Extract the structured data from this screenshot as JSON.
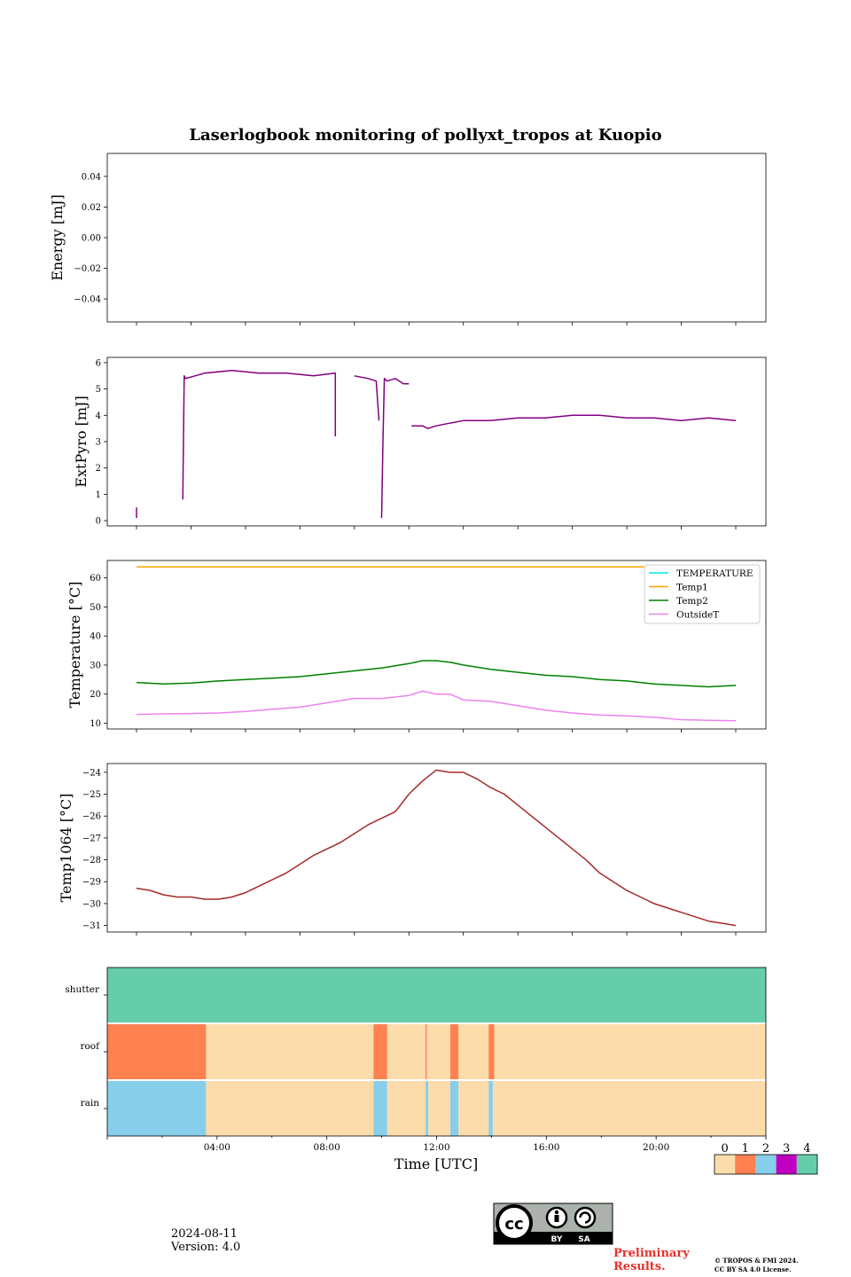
{
  "title": "Laserlogbook monitoring of pollyxt_tropos at Kuopio",
  "xlabel": "Time [UTC]",
  "xticks": [
    "04:00",
    "08:00",
    "12:00",
    "16:00",
    "20:00"
  ],
  "date": "2024-08-11",
  "version": "Version: 4.0",
  "preliminary": [
    "Preliminary",
    "Results."
  ],
  "copyright": [
    "© TROPOS & FMI 2024.",
    "CC BY SA 4.0 License."
  ],
  "license_badge": {
    "cc": "cc",
    "by": "BY",
    "sa": "SA"
  },
  "colors": {
    "ext_pyro": "#800080",
    "temperature": "#00e5ee",
    "temp1": "#ffa500",
    "temp2": "#008000",
    "outside_t": "#ee82ee",
    "temp1064": "#a52a2a",
    "state_0": "#fcdcab",
    "state_1": "#ff8050",
    "state_2": "#87ceeb",
    "state_3": "#c000c0",
    "state_4": "#66cdaa"
  },
  "chart_data": [
    {
      "type": "line",
      "ylabel": "Energy [mJ]",
      "ylim": [
        -0.055,
        0.055
      ],
      "yticks": [
        -0.04,
        -0.02,
        0.0,
        0.02,
        0.04
      ],
      "ytick_labels": [
        "−0.04",
        "−0.02",
        "0.00",
        "0.02",
        "0.04"
      ],
      "series": []
    },
    {
      "type": "line",
      "ylabel": "ExtPyro [mJ]",
      "ylim": [
        -0.2,
        6.2
      ],
      "yticks": [
        0,
        1,
        2,
        3,
        4,
        5,
        6
      ],
      "ytick_labels": [
        "0",
        "1",
        "2",
        "3",
        "4",
        "5",
        "6"
      ],
      "x_hours": [
        1.0,
        1.0,
        2.7,
        2.7,
        2.75,
        2.8,
        3.5,
        4.5,
        5.5,
        6.5,
        7.5,
        8.3,
        8.3,
        8.4,
        8.5,
        8.5,
        9.0,
        9.5,
        9.8,
        9.9,
        9.95,
        10.0,
        10.05,
        10.1,
        10.2,
        10.5,
        10.8,
        11.0,
        11.1,
        11.1,
        11.5,
        11.7,
        12.0,
        12.5,
        13.0,
        14.0,
        15.0,
        16.0,
        17.0,
        18.0,
        19.0,
        20.0,
        21.0,
        22.0,
        23.0
      ],
      "series": [
        {
          "name": "ExtPyro",
          "values": [
            0.5,
            0.1,
            null,
            0.8,
            5.5,
            5.4,
            5.6,
            5.7,
            5.6,
            5.6,
            5.5,
            5.6,
            3.2,
            null,
            0.8,
            null,
            5.5,
            5.4,
            5.3,
            3.8,
            null,
            0.1,
            3.2,
            5.4,
            5.3,
            5.4,
            5.2,
            5.2,
            null,
            3.6,
            3.6,
            3.5,
            3.6,
            3.7,
            3.8,
            3.8,
            3.9,
            3.9,
            4.0,
            4.0,
            3.9,
            3.9,
            3.8,
            3.9,
            3.8
          ]
        }
      ]
    },
    {
      "type": "line",
      "ylabel": "Temperature [°C]",
      "ylim": [
        8,
        66
      ],
      "yticks": [
        10,
        20,
        30,
        40,
        50,
        60
      ],
      "ytick_labels": [
        "10",
        "20",
        "30",
        "40",
        "50",
        "60"
      ],
      "legend": "top-right",
      "x_hours": [
        1.0,
        2.0,
        3.0,
        4.0,
        5.0,
        6.0,
        7.0,
        8.0,
        9.0,
        10.0,
        11.0,
        11.5,
        12.0,
        12.5,
        13.0,
        14.0,
        15.0,
        16.0,
        17.0,
        18.0,
        19.0,
        20.0,
        21.0,
        22.0,
        23.0
      ],
      "series": [
        {
          "name": "TEMPERATURE",
          "values": []
        },
        {
          "name": "Temp1",
          "values": [
            63.8,
            63.8,
            63.8,
            63.8,
            63.8,
            63.8,
            63.8,
            63.8,
            63.8,
            63.8,
            63.8,
            63.8,
            63.8,
            63.8,
            63.8,
            63.8,
            63.8,
            63.8,
            63.8,
            63.8,
            63.8,
            63.8,
            63.8,
            63.8,
            63.8
          ]
        },
        {
          "name": "Temp2",
          "values": [
            24.0,
            23.5,
            23.8,
            24.5,
            25.0,
            25.5,
            26.0,
            27.0,
            28.0,
            29.0,
            30.5,
            31.5,
            31.5,
            31.0,
            30.0,
            28.5,
            27.5,
            26.5,
            26.0,
            25.0,
            24.5,
            23.5,
            23.0,
            22.5,
            23.0
          ]
        },
        {
          "name": "OutsideT",
          "values": [
            13.0,
            13.2,
            13.3,
            13.5,
            14.0,
            14.8,
            15.5,
            17.0,
            18.5,
            18.5,
            19.5,
            21.0,
            20.0,
            20.0,
            18.0,
            17.5,
            16.0,
            14.5,
            13.5,
            12.8,
            12.5,
            12.0,
            11.2,
            11.0,
            10.8
          ]
        }
      ]
    },
    {
      "type": "line",
      "ylabel": "Temp1064 [°C]",
      "ylim": [
        -31.3,
        -23.6
      ],
      "yticks": [
        -31,
        -30,
        -29,
        -28,
        -27,
        -26,
        -25,
        -24
      ],
      "ytick_labels": [
        "−31",
        "−30",
        "−29",
        "−28",
        "−27",
        "−26",
        "−25",
        "−24"
      ],
      "x_hours": [
        1.0,
        1.5,
        2.0,
        2.5,
        3.0,
        3.5,
        4.0,
        4.5,
        5.0,
        5.5,
        6.0,
        6.5,
        7.0,
        7.5,
        8.0,
        8.5,
        9.0,
        9.5,
        10.0,
        10.5,
        11.0,
        11.5,
        12.0,
        12.5,
        13.0,
        13.5,
        14.0,
        14.5,
        15.0,
        15.5,
        16.0,
        16.5,
        17.0,
        17.5,
        18.0,
        18.5,
        19.0,
        19.5,
        20.0,
        20.5,
        21.0,
        21.5,
        22.0,
        22.5,
        23.0
      ],
      "series": [
        {
          "name": "Temp1064",
          "values": [
            -29.3,
            -29.4,
            -29.6,
            -29.7,
            -29.7,
            -29.8,
            -29.8,
            -29.7,
            -29.5,
            -29.2,
            -28.9,
            -28.6,
            -28.2,
            -27.8,
            -27.5,
            -27.2,
            -26.8,
            -26.4,
            -26.1,
            -25.8,
            -25.0,
            -24.4,
            -23.9,
            -24.0,
            -24.0,
            -24.3,
            -24.7,
            -25.0,
            -25.5,
            -26.0,
            -26.5,
            -27.0,
            -27.5,
            -28.0,
            -28.6,
            -29.0,
            -29.4,
            -29.7,
            -30.0,
            -30.2,
            -30.4,
            -30.6,
            -30.8,
            -30.9,
            -31.0
          ]
        }
      ]
    },
    {
      "type": "heatmap",
      "rows": [
        "shutter",
        "roof",
        "rain"
      ],
      "colorbar_ticks": [
        "0",
        "1",
        "2",
        "3",
        "4"
      ],
      "segments": {
        "shutter": [
          {
            "start": 0.0,
            "end": 24.0,
            "state": 4
          }
        ],
        "roof": [
          {
            "start": 0.0,
            "end": 3.6,
            "state": 1
          },
          {
            "start": 3.6,
            "end": 9.7,
            "state": 0
          },
          {
            "start": 9.7,
            "end": 10.2,
            "state": 1
          },
          {
            "start": 10.2,
            "end": 11.6,
            "state": 0
          },
          {
            "start": 11.6,
            "end": 11.65,
            "state": 1
          },
          {
            "start": 11.65,
            "end": 12.5,
            "state": 0
          },
          {
            "start": 12.5,
            "end": 12.8,
            "state": 1
          },
          {
            "start": 12.8,
            "end": 13.9,
            "state": 0
          },
          {
            "start": 13.9,
            "end": 14.1,
            "state": 1
          },
          {
            "start": 14.1,
            "end": 24.0,
            "state": 0
          }
        ],
        "rain": [
          {
            "start": 0.0,
            "end": 3.6,
            "state": 2
          },
          {
            "start": 3.6,
            "end": 9.7,
            "state": 0
          },
          {
            "start": 9.7,
            "end": 10.2,
            "state": 2
          },
          {
            "start": 10.2,
            "end": 11.6,
            "state": 0
          },
          {
            "start": 11.6,
            "end": 11.7,
            "state": 2
          },
          {
            "start": 11.7,
            "end": 12.5,
            "state": 0
          },
          {
            "start": 12.5,
            "end": 12.8,
            "state": 2
          },
          {
            "start": 12.8,
            "end": 13.9,
            "state": 0
          },
          {
            "start": 13.9,
            "end": 14.05,
            "state": 2
          },
          {
            "start": 14.05,
            "end": 24.0,
            "state": 0
          }
        ]
      }
    }
  ]
}
